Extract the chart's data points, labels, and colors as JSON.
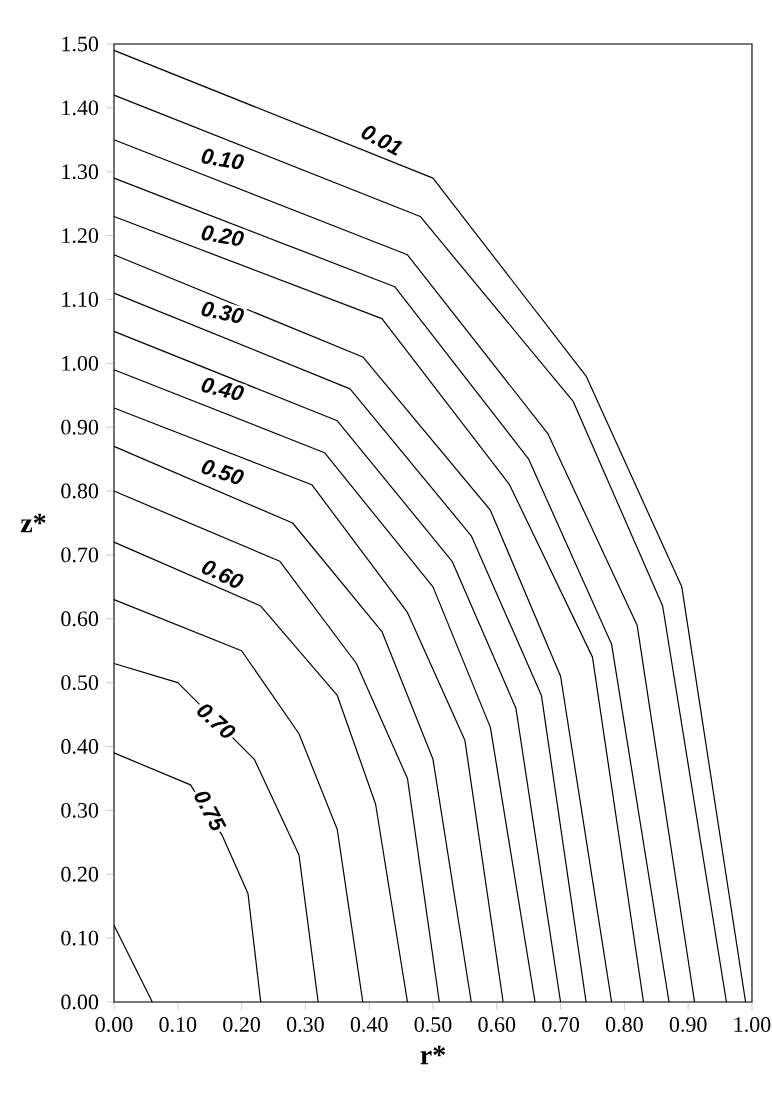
{
  "chart_data": {
    "type": "line",
    "xlabel": "r*",
    "ylabel": "z*",
    "xlim": [
      0,
      1
    ],
    "ylim": [
      0,
      1.5
    ],
    "xticks": [
      {
        "value": 0,
        "label": "0.00"
      },
      {
        "value": 0.1,
        "label": "0.10"
      },
      {
        "value": 0.2,
        "label": "0.20"
      },
      {
        "value": 0.3,
        "label": "0.30"
      },
      {
        "value": 0.4,
        "label": "0.40"
      },
      {
        "value": 0.5,
        "label": "0.50"
      },
      {
        "value": 0.6,
        "label": "0.60"
      },
      {
        "value": 0.7,
        "label": "0.70"
      },
      {
        "value": 0.8,
        "label": "0.80"
      },
      {
        "value": 0.9,
        "label": "0.90"
      },
      {
        "value": 1.0,
        "label": "1.00"
      }
    ],
    "yticks": [
      {
        "value": 0,
        "label": "0.00"
      },
      {
        "value": 0.1,
        "label": "0.10"
      },
      {
        "value": 0.2,
        "label": "0.20"
      },
      {
        "value": 0.3,
        "label": "0.30"
      },
      {
        "value": 0.4,
        "label": "0.40"
      },
      {
        "value": 0.5,
        "label": "0.50"
      },
      {
        "value": 0.6,
        "label": "0.60"
      },
      {
        "value": 0.7,
        "label": "0.70"
      },
      {
        "value": 0.8,
        "label": "0.80"
      },
      {
        "value": 0.9,
        "label": "0.90"
      },
      {
        "value": 1.0,
        "label": "1.00"
      },
      {
        "value": 1.1,
        "label": "1.10"
      },
      {
        "value": 1.2,
        "label": "1.20"
      },
      {
        "value": 1.3,
        "label": "1.30"
      },
      {
        "value": 1.4,
        "label": "1.40"
      },
      {
        "value": 1.5,
        "label": "1.50"
      }
    ],
    "marker": "none",
    "line_style": "solid",
    "grid": false,
    "series": [
      {
        "color": "#000000",
        "x": [
          0,
          0.06
        ],
        "values": [
          0.12,
          0
        ]
      },
      {
        "color": "#000000",
        "x": [
          0,
          0.12,
          0.17,
          0.21,
          0.23
        ],
        "values": [
          0.39,
          0.34,
          0.26,
          0.17,
          0
        ]
      },
      {
        "color": "#000000",
        "x": [
          0,
          0.1,
          0.22,
          0.29,
          0.32
        ],
        "values": [
          0.53,
          0.5,
          0.38,
          0.23,
          0
        ]
      },
      {
        "color": "#000000",
        "x": [
          0,
          0.2,
          0.29,
          0.35,
          0.39
        ],
        "values": [
          0.63,
          0.55,
          0.42,
          0.27,
          0
        ]
      },
      {
        "color": "#000000",
        "x": [
          0,
          0.23,
          0.35,
          0.41,
          0.46
        ],
        "values": [
          0.72,
          0.62,
          0.48,
          0.31,
          0
        ]
      },
      {
        "color": "#000000",
        "x": [
          0,
          0.26,
          0.38,
          0.46,
          0.51
        ],
        "values": [
          0.8,
          0.69,
          0.53,
          0.35,
          0
        ]
      },
      {
        "color": "#000000",
        "x": [
          0,
          0.28,
          0.42,
          0.5,
          0.56
        ],
        "values": [
          0.87,
          0.75,
          0.58,
          0.38,
          0
        ]
      },
      {
        "color": "#000000",
        "x": [
          0,
          0.31,
          0.46,
          0.55,
          0.61
        ],
        "values": [
          0.93,
          0.81,
          0.61,
          0.41,
          0
        ]
      },
      {
        "color": "#000000",
        "x": [
          0,
          0.33,
          0.5,
          0.59,
          0.66
        ],
        "values": [
          0.99,
          0.86,
          0.65,
          0.43,
          0
        ]
      },
      {
        "color": "#000000",
        "x": [
          0,
          0.35,
          0.53,
          0.63,
          0.7
        ],
        "values": [
          1.05,
          0.91,
          0.69,
          0.46,
          0
        ]
      },
      {
        "color": "#000000",
        "x": [
          0,
          0.37,
          0.56,
          0.67,
          0.74
        ],
        "values": [
          1.11,
          0.96,
          0.73,
          0.48,
          0
        ]
      },
      {
        "color": "#000000",
        "x": [
          0,
          0.39,
          0.59,
          0.7,
          0.78
        ],
        "values": [
          1.17,
          1.01,
          0.77,
          0.51,
          0
        ]
      },
      {
        "color": "#000000",
        "x": [
          0,
          0.42,
          0.62,
          0.75,
          0.83
        ],
        "values": [
          1.23,
          1.07,
          0.81,
          0.54,
          0
        ]
      },
      {
        "color": "#000000",
        "x": [
          0,
          0.44,
          0.65,
          0.78,
          0.87
        ],
        "values": [
          1.29,
          1.12,
          0.85,
          0.56,
          0
        ]
      },
      {
        "color": "#000000",
        "x": [
          0,
          0.46,
          0.68,
          0.82,
          0.91
        ],
        "values": [
          1.35,
          1.17,
          0.89,
          0.59,
          0
        ]
      },
      {
        "color": "#000000",
        "x": [
          0,
          0.48,
          0.72,
          0.86,
          0.96
        ],
        "values": [
          1.42,
          1.23,
          0.94,
          0.62,
          0
        ]
      },
      {
        "color": "#000000",
        "x": [
          0,
          0.5,
          0.74,
          0.89,
          0.99
        ],
        "values": [
          1.49,
          1.29,
          0.98,
          0.65,
          0
        ]
      }
    ],
    "annotations": [
      {
        "text": "0.01",
        "x": 0.42,
        "y": 1.35
      },
      {
        "text": "0.10",
        "x": 0.17,
        "y": 1.32
      },
      {
        "text": "0.20",
        "x": 0.17,
        "y": 1.2
      },
      {
        "text": "0.30",
        "x": 0.17,
        "y": 1.08
      },
      {
        "text": "0.40",
        "x": 0.17,
        "y": 0.96
      },
      {
        "text": "0.50",
        "x": 0.17,
        "y": 0.83
      },
      {
        "text": "0.60",
        "x": 0.17,
        "y": 0.67
      },
      {
        "text": "0.70",
        "x": 0.16,
        "y": 0.44
      },
      {
        "text": "0.75",
        "x": 0.15,
        "y": 0.3
      }
    ]
  }
}
